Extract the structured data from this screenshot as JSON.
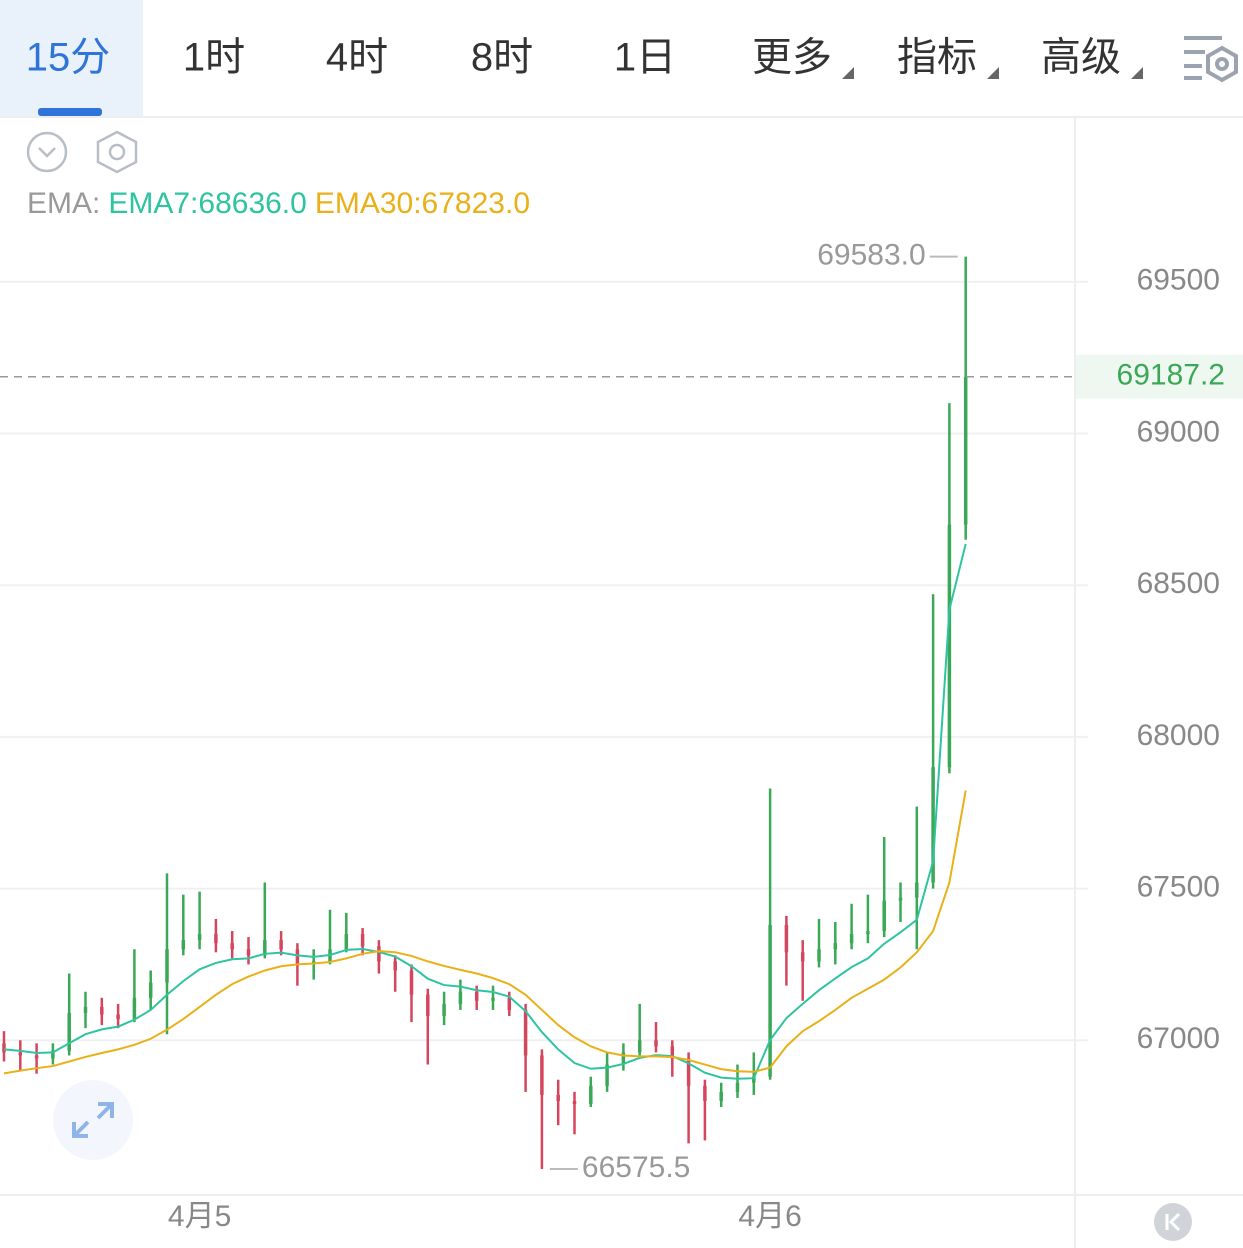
{
  "tabs": [
    {
      "label": "15分"
    },
    {
      "label": "1时"
    },
    {
      "label": "4时"
    },
    {
      "label": "8时"
    },
    {
      "label": "1日"
    },
    {
      "label": "更多",
      "menu": true
    },
    {
      "label": "指标",
      "menu": true
    },
    {
      "label": "高级",
      "menu": true
    }
  ],
  "active_tab": 0,
  "chart_data": {
    "type": "candlestick",
    "indicator_label": "EMA:",
    "x": [
      null,
      null,
      null,
      null,
      null,
      null,
      null,
      null,
      null,
      null,
      null,
      null,
      "4月5",
      null,
      null,
      null,
      null,
      null,
      null,
      null,
      null,
      null,
      null,
      null,
      null,
      null,
      null,
      null,
      null,
      null,
      null,
      null,
      null,
      null,
      null,
      null,
      null,
      null,
      null,
      null,
      null,
      null,
      null,
      null,
      null,
      null,
      null,
      "4月6",
      null,
      null,
      null,
      null,
      null,
      null,
      null,
      null,
      null,
      null,
      null,
      null
    ],
    "open": [
      66990,
      66960,
      66950,
      66940,
      66965,
      67090,
      67110,
      67085,
      67070,
      67140,
      67190,
      67300,
      67330,
      67350,
      67320,
      67300,
      67280,
      67330,
      67300,
      67250,
      67260,
      67300,
      67350,
      67310,
      67260,
      67230,
      67150,
      67080,
      67120,
      67160,
      67130,
      67140,
      67100,
      66950,
      66820,
      66800,
      66790,
      66850,
      66920,
      66960,
      67000,
      66980,
      66940,
      66850,
      66800,
      66830,
      66860,
      66880,
      67380,
      67290,
      67260,
      67300,
      67320,
      67350,
      67360,
      67460,
      67470,
      67520,
      67900,
      68700
    ],
    "high": [
      67030,
      67000,
      66990,
      66990,
      67220,
      67160,
      67140,
      67120,
      67300,
      67230,
      67550,
      67480,
      67490,
      67400,
      67360,
      67340,
      67520,
      67360,
      67320,
      67300,
      67430,
      67420,
      67370,
      67330,
      67280,
      67250,
      67170,
      67160,
      67200,
      67180,
      67180,
      67160,
      67120,
      66970,
      66870,
      66830,
      66880,
      66960,
      66990,
      67120,
      67060,
      67000,
      66960,
      66870,
      66860,
      66920,
      66960,
      67830,
      67410,
      67330,
      67400,
      67390,
      67450,
      67480,
      67670,
      67520,
      67770,
      68470,
      69100,
      69583
    ],
    "low": [
      66930,
      66900,
      66890,
      66920,
      66950,
      67040,
      67050,
      67040,
      67060,
      67100,
      67020,
      67280,
      67300,
      67290,
      67270,
      67250,
      67270,
      67280,
      67180,
      67200,
      67250,
      67290,
      67280,
      67220,
      67160,
      67060,
      66920,
      67050,
      67100,
      67100,
      67100,
      67080,
      66830,
      66575.5,
      66720,
      66690,
      66780,
      66830,
      66900,
      66950,
      66960,
      66880,
      66660,
      66670,
      66780,
      66810,
      66820,
      66870,
      67180,
      67130,
      67240,
      67250,
      67300,
      67320,
      67340,
      67390,
      67300,
      67500,
      67880,
      68650
    ],
    "close": [
      66960,
      66950,
      66940,
      66965,
      67090,
      67110,
      67085,
      67070,
      67140,
      67190,
      67300,
      67330,
      67350,
      67320,
      67300,
      67280,
      67330,
      67300,
      67250,
      67260,
      67300,
      67350,
      67310,
      67260,
      67230,
      67150,
      67080,
      67120,
      67160,
      67130,
      67140,
      67100,
      66950,
      66820,
      66800,
      66790,
      66850,
      66920,
      66960,
      67000,
      66980,
      66940,
      66850,
      66800,
      66830,
      66860,
      66880,
      67380,
      67290,
      67260,
      67300,
      67320,
      67350,
      67360,
      67460,
      67470,
      67520,
      67900,
      68700,
      69187.2
    ],
    "up_color": "#3aa857",
    "down_color": "#d5455e",
    "series": [
      {
        "legend_label": "EMA7:68636.0",
        "color": "#2ec4a0",
        "values": [
          66970,
          66965,
          66958,
          66960,
          66990,
          67020,
          67036,
          67045,
          67068,
          67100,
          67150,
          67195,
          67234,
          67255,
          67267,
          67270,
          67285,
          67289,
          67280,
          67275,
          67281,
          67298,
          67301,
          67291,
          67276,
          67244,
          67203,
          67182,
          67177,
          67165,
          67159,
          67144,
          67096,
          67027,
          66970,
          66925,
          66906,
          66910,
          66922,
          66942,
          66951,
          66948,
          66924,
          66893,
          66877,
          66873,
          66875,
          67001,
          67073,
          67120,
          67165,
          67204,
          67241,
          67270,
          67318,
          67356,
          67397,
          67590,
          68420,
          68636
        ]
      },
      {
        "legend_label": "EMA30:67823.0",
        "color": "#e9b018",
        "values": [
          66891,
          66900,
          66908,
          66915,
          66930,
          66945,
          66958,
          66970,
          66985,
          67005,
          67035,
          67070,
          67110,
          67150,
          67185,
          67210,
          67230,
          67244,
          67250,
          67253,
          67258,
          67270,
          67285,
          67294,
          67290,
          67278,
          67260,
          67245,
          67232,
          67220,
          67205,
          67185,
          67150,
          67100,
          67050,
          67010,
          66980,
          66960,
          66950,
          66947,
          66947,
          66945,
          66935,
          66920,
          66905,
          66898,
          66896,
          66910,
          66980,
          67030,
          67063,
          67100,
          67140,
          67170,
          67200,
          67240,
          67290,
          67360,
          67520,
          67823
        ]
      }
    ],
    "ylim": [
      66490,
      70040
    ],
    "yticks": [
      67000,
      67500,
      68000,
      68500,
      69000,
      69500
    ],
    "high_label": "69583.0",
    "grid": true
  }
}
